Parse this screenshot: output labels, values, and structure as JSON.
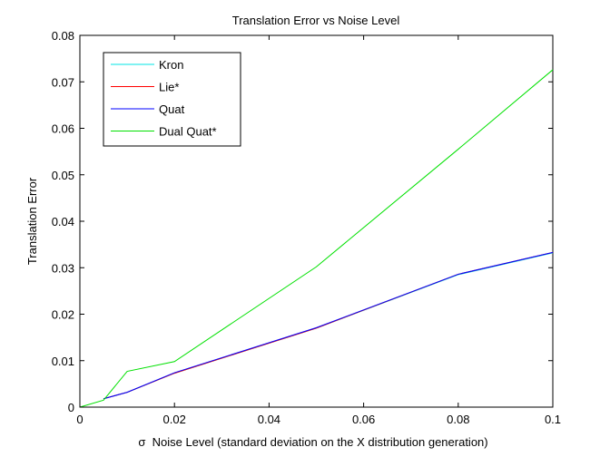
{
  "chart_data": {
    "type": "line",
    "title": "Translation Error vs Noise Level",
    "xlabel": "σ  Noise Level (standard deviation on the X distribution generation)",
    "ylabel": "Translation Error",
    "xlim": [
      0,
      0.1
    ],
    "ylim": [
      0,
      0.08
    ],
    "xticks": [
      0,
      0.02,
      0.04,
      0.06,
      0.08,
      0.1
    ],
    "xtick_labels": [
      "0",
      "0.02",
      "0.04",
      "0.06",
      "0.08",
      "0.1"
    ],
    "yticks": [
      0,
      0.01,
      0.02,
      0.03,
      0.04,
      0.05,
      0.06,
      0.07,
      0.08
    ],
    "ytick_labels": [
      "0",
      "0.01",
      "0.02",
      "0.03",
      "0.04",
      "0.05",
      "0.06",
      "0.07",
      "0.08"
    ],
    "grid": false,
    "legend_position": "top-left",
    "series": [
      {
        "name": "Kron",
        "color": "#00e5e5",
        "x": [
          0.005,
          0.01,
          0.02,
          0.05,
          0.08,
          0.1
        ],
        "y": [
          0.0018,
          0.0032,
          0.0073,
          0.017,
          0.0285,
          0.0332
        ]
      },
      {
        "name": "Lie*",
        "color": "#ff0000",
        "x": [
          0.005,
          0.01,
          0.02,
          0.05,
          0.08,
          0.1
        ],
        "y": [
          0.0018,
          0.0032,
          0.0073,
          0.017,
          0.0286,
          0.0333
        ]
      },
      {
        "name": "Quat",
        "color": "#0000ff",
        "x": [
          0.005,
          0.01,
          0.02,
          0.05,
          0.08,
          0.1
        ],
        "y": [
          0.0018,
          0.0032,
          0.0074,
          0.0171,
          0.0286,
          0.0333
        ]
      },
      {
        "name": "Dual Quat*",
        "color": "#00e000",
        "x": [
          0,
          0.005,
          0.01,
          0.02,
          0.05,
          0.08,
          0.1
        ],
        "y": [
          0,
          0.0015,
          0.0077,
          0.0098,
          0.0302,
          0.0555,
          0.0726
        ]
      }
    ]
  }
}
